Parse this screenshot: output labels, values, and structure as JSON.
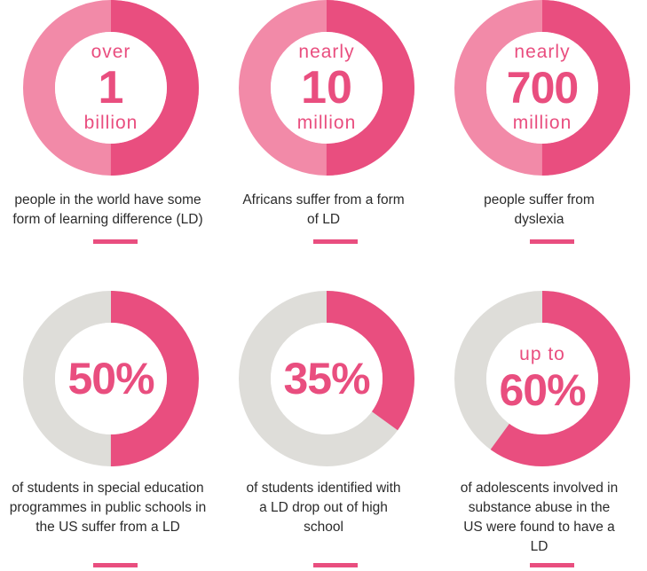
{
  "colors": {
    "accent": "#e94e7f",
    "accent_light": "#f28aa8",
    "neutral": "#deddd9",
    "text": "#2b2b2b"
  },
  "chart_data": [
    {
      "type": "pie",
      "prefix": "over",
      "value_label": "1",
      "suffix": "billion",
      "caption": "people in the world have some form of learning difference (LD)",
      "fill_fraction": 0.5,
      "track": "light-pink"
    },
    {
      "type": "pie",
      "prefix": "nearly",
      "value_label": "10",
      "suffix": "million",
      "caption": "Africans suffer from a form of LD",
      "fill_fraction": 0.5,
      "track": "light-pink"
    },
    {
      "type": "pie",
      "prefix": "nearly",
      "value_label": "700",
      "suffix": "million",
      "caption": "people suffer from dyslexia",
      "fill_fraction": 0.5,
      "track": "light-pink"
    },
    {
      "type": "pie",
      "prefix": "",
      "value_label": "50%",
      "suffix": "",
      "caption": "of students in special education programmes in public schools in the US suffer from a LD",
      "fill_fraction": 0.5,
      "track": "grey"
    },
    {
      "type": "pie",
      "prefix": "",
      "value_label": "35%",
      "suffix": "",
      "caption": "of students identified with a LD drop out of high school",
      "fill_fraction": 0.35,
      "track": "grey"
    },
    {
      "type": "pie",
      "prefix": "up to",
      "value_label": "60%",
      "suffix": "",
      "caption": "of adolescents involved in substance abuse in the US were found to have a LD",
      "fill_fraction": 0.6,
      "track": "grey"
    }
  ]
}
